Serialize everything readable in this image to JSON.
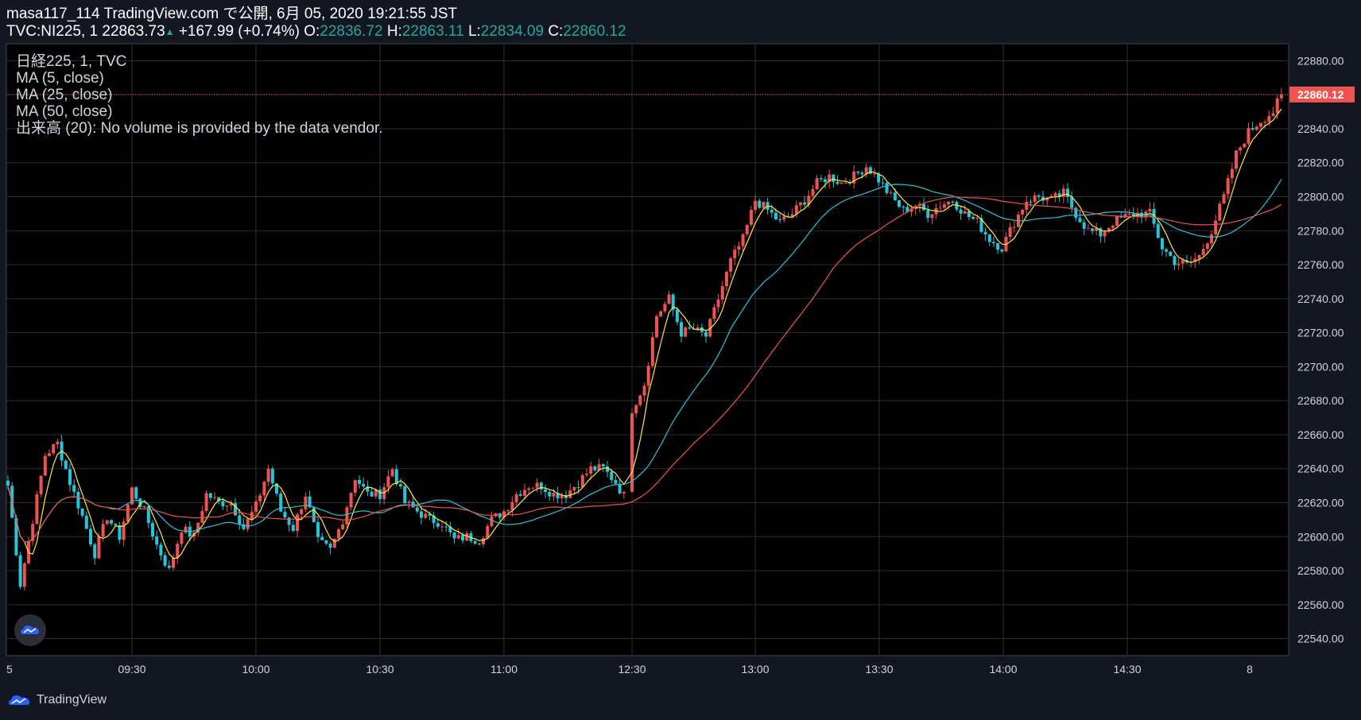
{
  "header": {
    "line1": "masa117_114 TradingView.com で公開, 6月 05, 2020 19:21:55 JST",
    "symbol": "TVC:NI225, 1",
    "last": "22863.73",
    "up_arrow": "▲",
    "change": "+167.99 (+0.74%)",
    "o_label": "O:",
    "o_val": "22836.72",
    "h_label": "H:",
    "h_val": "22863.11",
    "l_label": "L:",
    "l_val": "22834.09",
    "c_label": "C:",
    "c_val": "22860.12"
  },
  "legend": {
    "title": "日経225, 1, TVC",
    "ma5": "MA (5, close)",
    "ma25": "MA (25, close)",
    "ma50": "MA (50, close)",
    "volume": "出来高 (20): No volume is provided by the data vendor."
  },
  "footer": {
    "brand": "TradingView"
  },
  "colors": {
    "background": "#131722",
    "grid": "#2a2e39",
    "up": "#ef5350",
    "down": "#26c6da",
    "ma5": "#ffeb3b",
    "ma25": "#26c6da",
    "ma50": "#ef5350",
    "axis_text": "#d1d4dc",
    "last_price_bg": "#ef5350"
  },
  "chart_data": {
    "type": "candlestick",
    "y_range": [
      22530,
      22890
    ],
    "y_ticks": [
      22540,
      22560,
      22580,
      22600,
      22620,
      22640,
      22660,
      22680,
      22700,
      22720,
      22740,
      22760,
      22780,
      22800,
      22820,
      22840,
      22860,
      22880
    ],
    "x_ticks": [
      "5",
      "09:30",
      "10:00",
      "10:30",
      "11:00",
      "12:30",
      "13:00",
      "13:30",
      "14:00",
      "14:30",
      "8"
    ],
    "last_price": "22860.12",
    "close_path": [
      [
        "09:00",
        22630
      ],
      [
        "09:03",
        22572
      ],
      [
        "09:06",
        22610
      ],
      [
        "09:09",
        22648
      ],
      [
        "09:12",
        22655
      ],
      [
        "09:15",
        22632
      ],
      [
        "09:18",
        22612
      ],
      [
        "09:21",
        22590
      ],
      [
        "09:24",
        22612
      ],
      [
        "09:27",
        22600
      ],
      [
        "09:30",
        22628
      ],
      [
        "09:33",
        22615
      ],
      [
        "09:36",
        22595
      ],
      [
        "09:39",
        22580
      ],
      [
        "09:42",
        22605
      ],
      [
        "09:45",
        22600
      ],
      [
        "09:48",
        22625
      ],
      [
        "09:51",
        22620
      ],
      [
        "09:54",
        22620
      ],
      [
        "09:57",
        22605
      ],
      [
        "10:00",
        22618
      ],
      [
        "10:03",
        22640
      ],
      [
        "10:06",
        22615
      ],
      [
        "10:09",
        22605
      ],
      [
        "10:12",
        22625
      ],
      [
        "10:15",
        22597
      ],
      [
        "10:18",
        22592
      ],
      [
        "10:21",
        22610
      ],
      [
        "10:24",
        22635
      ],
      [
        "10:27",
        22625
      ],
      [
        "10:30",
        22625
      ],
      [
        "10:33",
        22640
      ],
      [
        "10:36",
        22620
      ],
      [
        "10:39",
        22615
      ],
      [
        "10:42",
        22610
      ],
      [
        "10:45",
        22608
      ],
      [
        "10:48",
        22598
      ],
      [
        "10:51",
        22600
      ],
      [
        "10:54",
        22598
      ],
      [
        "10:57",
        22610
      ],
      [
        "11:00",
        22615
      ],
      [
        "11:03",
        22625
      ],
      [
        "11:06",
        22630
      ],
      [
        "11:09",
        22630
      ],
      [
        "11:12",
        22625
      ],
      [
        "11:15",
        22625
      ],
      [
        "11:18",
        22632
      ],
      [
        "11:21",
        22640
      ],
      [
        "11:24",
        22640
      ],
      [
        "11:27",
        22632
      ],
      [
        "11:30",
        22620
      ],
      [
        "12:30",
        22675
      ],
      [
        "12:33",
        22690
      ],
      [
        "12:36",
        22730
      ],
      [
        "12:39",
        22740
      ],
      [
        "12:42",
        22720
      ],
      [
        "12:45",
        22722
      ],
      [
        "12:48",
        22718
      ],
      [
        "12:51",
        22740
      ],
      [
        "12:54",
        22762
      ],
      [
        "12:57",
        22775
      ],
      [
        "13:00",
        22798
      ],
      [
        "13:03",
        22792
      ],
      [
        "13:06",
        22785
      ],
      [
        "13:09",
        22790
      ],
      [
        "13:12",
        22798
      ],
      [
        "13:15",
        22808
      ],
      [
        "13:18",
        22812
      ],
      [
        "13:21",
        22808
      ],
      [
        "13:24",
        22812
      ],
      [
        "13:27",
        22818
      ],
      [
        "13:30",
        22810
      ],
      [
        "13:33",
        22800
      ],
      [
        "13:36",
        22792
      ],
      [
        "13:39",
        22795
      ],
      [
        "13:42",
        22790
      ],
      [
        "13:45",
        22795
      ],
      [
        "13:48",
        22798
      ],
      [
        "13:51",
        22790
      ],
      [
        "13:54",
        22785
      ],
      [
        "13:57",
        22775
      ],
      [
        "14:00",
        22770
      ],
      [
        "14:03",
        22785
      ],
      [
        "14:06",
        22798
      ],
      [
        "14:09",
        22800
      ],
      [
        "14:12",
        22798
      ],
      [
        "14:15",
        22802
      ],
      [
        "14:18",
        22790
      ],
      [
        "14:21",
        22780
      ],
      [
        "14:24",
        22778
      ],
      [
        "14:27",
        22785
      ],
      [
        "14:30",
        22788
      ],
      [
        "14:33",
        22790
      ],
      [
        "14:36",
        22790
      ],
      [
        "14:39",
        22770
      ],
      [
        "14:42",
        22762
      ],
      [
        "14:45",
        22760
      ],
      [
        "14:48",
        22765
      ],
      [
        "14:51",
        22780
      ],
      [
        "14:54",
        22800
      ],
      [
        "14:57",
        22825
      ],
      [
        "15:00",
        22838
      ],
      [
        "15:03",
        22845
      ],
      [
        "15:06",
        22850
      ],
      [
        "15:08",
        22860
      ]
    ],
    "series": [
      {
        "name": "MA (5, close)",
        "color": "#ffeb3b"
      },
      {
        "name": "MA (25, close)",
        "color": "#26c6da"
      },
      {
        "name": "MA (50, close)",
        "color": "#ef5350"
      }
    ]
  }
}
